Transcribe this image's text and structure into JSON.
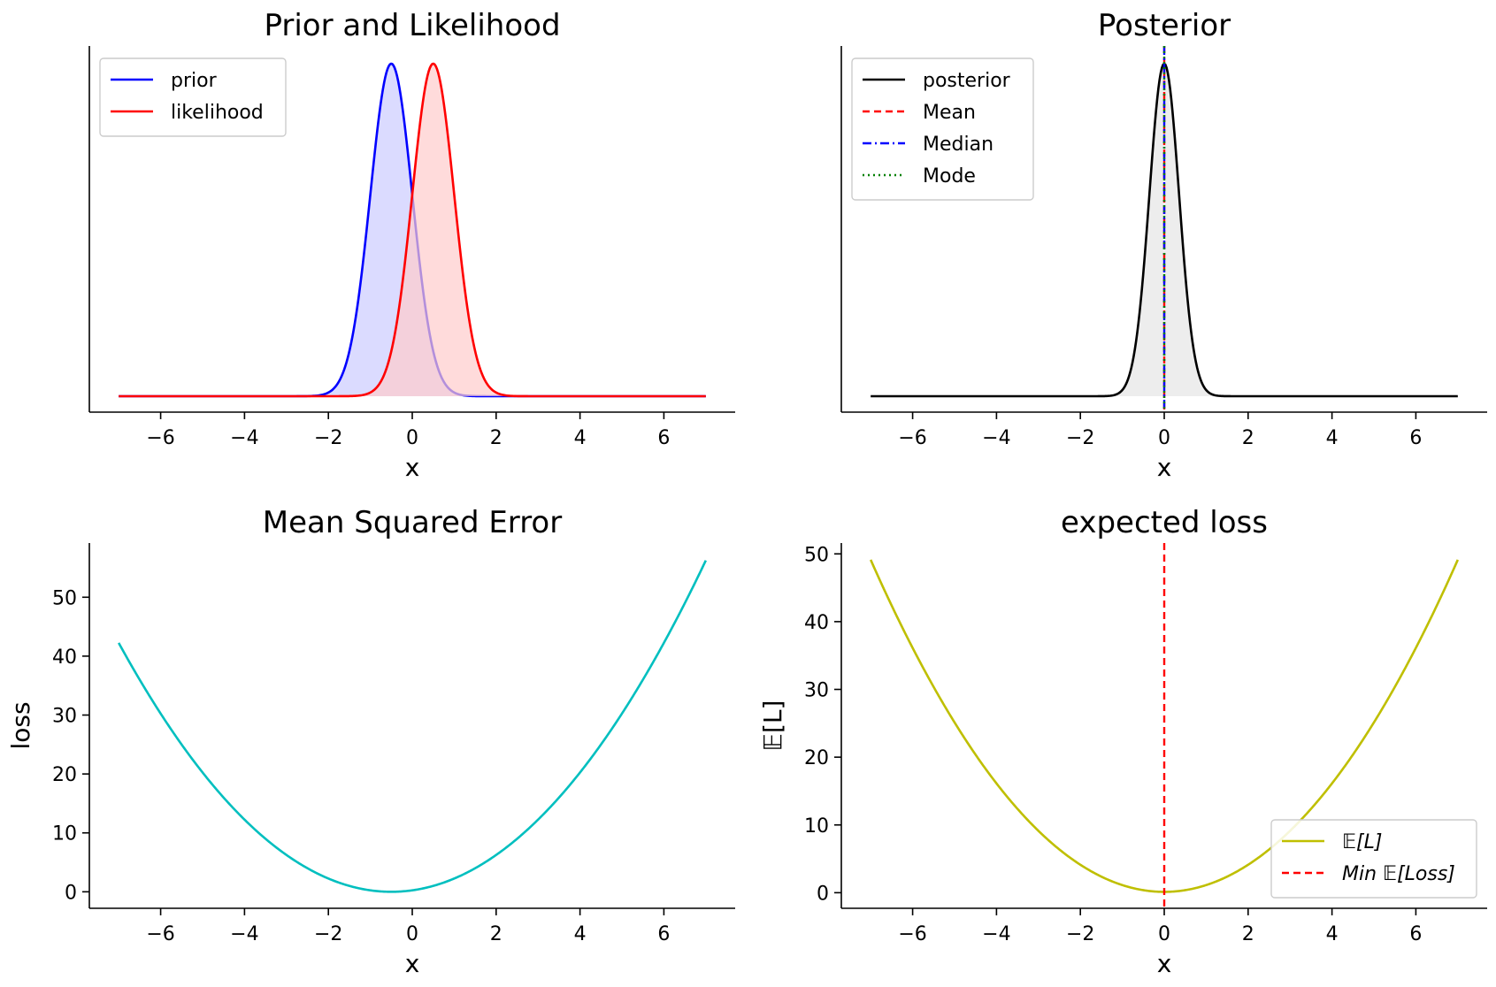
{
  "chart_data": [
    {
      "id": "prior-likelihood",
      "type": "line",
      "title": "Prior and Likelihood",
      "xlabel": "x",
      "ylabel": "",
      "xlim": [
        -7.7,
        7.7
      ],
      "xticks": [
        -6,
        -4,
        -2,
        0,
        2,
        4,
        6
      ],
      "xtick_labels": [
        "−6",
        "−4",
        "−2",
        "0",
        "2",
        "4",
        "6"
      ],
      "yticks": [],
      "ytick_labels": [],
      "legend_location": "upper-left",
      "series": [
        {
          "name": "prior",
          "kind": "gaussian",
          "mu": -0.5,
          "sigma": 0.5,
          "x_range": [
            -7,
            7
          ],
          "normalized_peak": 1.0,
          "color": "#0000ff",
          "fill": "#ccccff",
          "linestyle": "solid"
        },
        {
          "name": "likelihood",
          "kind": "gaussian",
          "mu": 0.5,
          "sigma": 0.5,
          "x_range": [
            -7,
            7
          ],
          "normalized_peak": 1.0,
          "color": "#ff0000",
          "fill": "#ffcccc",
          "linestyle": "solid"
        }
      ]
    },
    {
      "id": "posterior",
      "type": "line",
      "title": "Posterior",
      "xlabel": "x",
      "ylabel": "",
      "xlim": [
        -7.7,
        7.7
      ],
      "xticks": [
        -6,
        -4,
        -2,
        0,
        2,
        4,
        6
      ],
      "xtick_labels": [
        "−6",
        "−4",
        "−2",
        "0",
        "2",
        "4",
        "6"
      ],
      "yticks": [],
      "ytick_labels": [],
      "legend_location": "upper-left",
      "series": [
        {
          "name": "posterior",
          "kind": "gaussian",
          "mu": 0,
          "sigma": 0.354,
          "x_range": [
            -7,
            7
          ],
          "normalized_peak": 1.0,
          "color": "#000000",
          "fill": "#e5e5e5",
          "linestyle": "solid"
        },
        {
          "name": "Mean",
          "kind": "vline",
          "x": 0,
          "color": "#ff0000",
          "linestyle": "dashed"
        },
        {
          "name": "Median",
          "kind": "vline",
          "x": 0,
          "color": "#0000ff",
          "linestyle": "dashdot"
        },
        {
          "name": "Mode",
          "kind": "vline",
          "x": 0,
          "color": "#008000",
          "linestyle": "dotted"
        }
      ]
    },
    {
      "id": "mse",
      "type": "line",
      "title": "Mean Squared Error",
      "xlabel": "x",
      "ylabel": "loss",
      "xlim": [
        -7.7,
        7.7
      ],
      "ylim": [
        -2.8,
        59.2
      ],
      "xticks": [
        -6,
        -4,
        -2,
        0,
        2,
        4,
        6
      ],
      "xtick_labels": [
        "−6",
        "−4",
        "−2",
        "0",
        "2",
        "4",
        "6"
      ],
      "yticks": [
        0,
        10,
        20,
        30,
        40,
        50
      ],
      "ytick_labels": [
        "0",
        "10",
        "20",
        "30",
        "40",
        "50"
      ],
      "series": [
        {
          "name": "",
          "kind": "quadratic",
          "x0": -0.5,
          "x_range": [
            -7,
            7
          ],
          "color": "#00bfbf",
          "linestyle": "solid"
        }
      ]
    },
    {
      "id": "expected-loss",
      "type": "line",
      "title": "expected loss",
      "xlabel": "x",
      "ylabel": "𝔼[L]",
      "xlim": [
        -7.7,
        7.7
      ],
      "ylim": [
        -2.3,
        51.6
      ],
      "xticks": [
        -6,
        -4,
        -2,
        0,
        2,
        4,
        6
      ],
      "xtick_labels": [
        "−6",
        "−4",
        "−2",
        "0",
        "2",
        "4",
        "6"
      ],
      "yticks": [
        0,
        10,
        20,
        30,
        40,
        50
      ],
      "ytick_labels": [
        "0",
        "10",
        "20",
        "30",
        "40",
        "50"
      ],
      "legend_location": "lower-right",
      "series": [
        {
          "name": "𝔼[L]",
          "kind": "quadratic",
          "x0": 0,
          "offset": 0.125,
          "x_range": [
            -7,
            7
          ],
          "color": "#bfbf00",
          "linestyle": "solid"
        },
        {
          "name": "Min 𝔼[Loss]",
          "kind": "vline",
          "x": 0,
          "color": "#ff0000",
          "linestyle": "dashed"
        }
      ]
    }
  ]
}
